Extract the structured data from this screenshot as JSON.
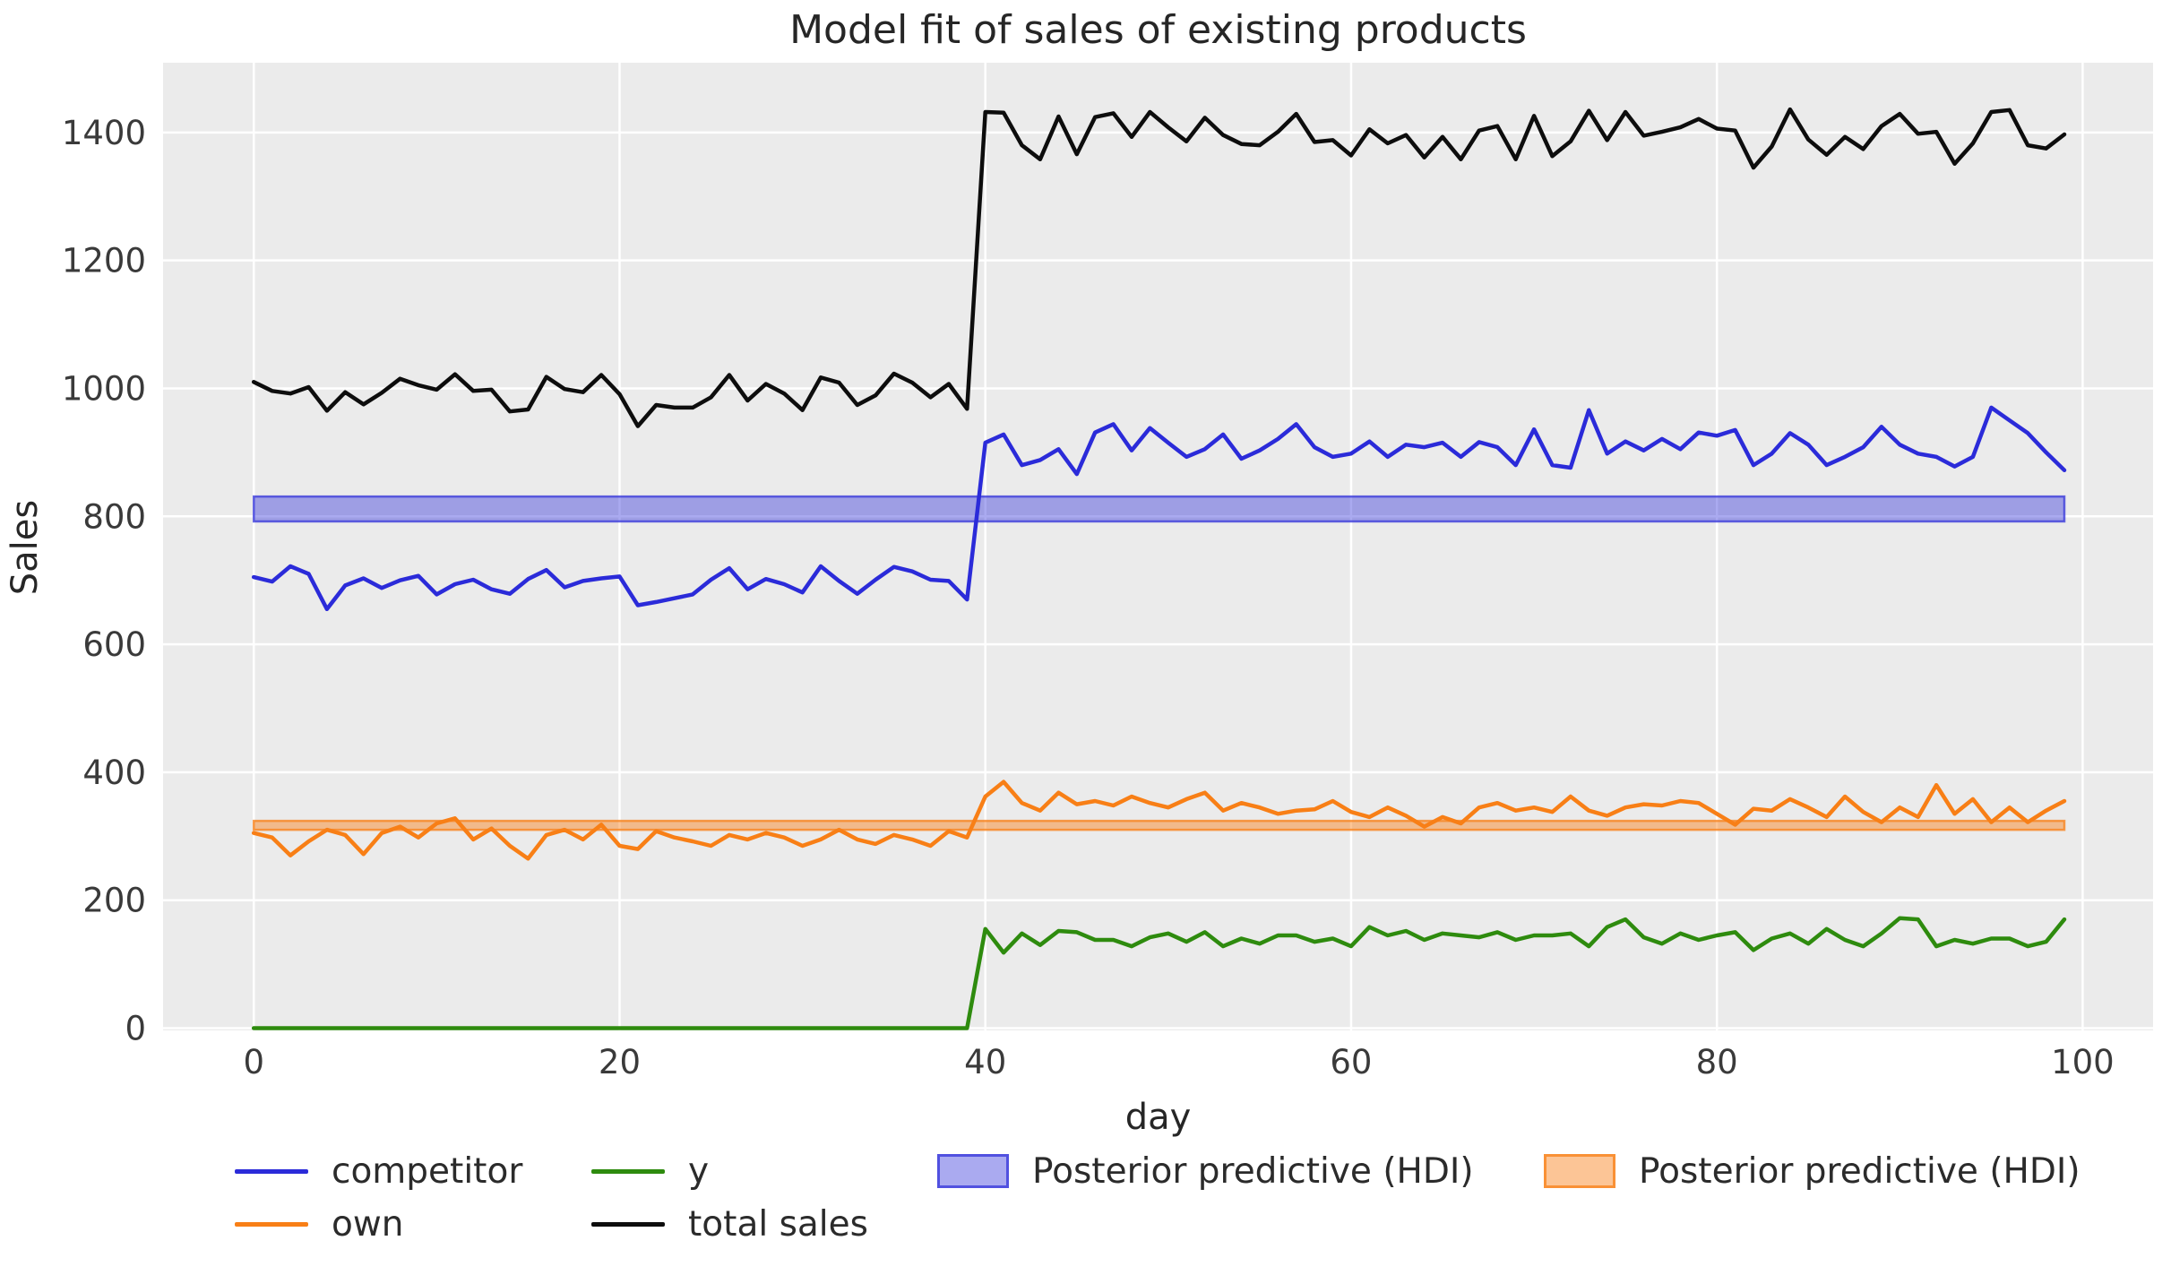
{
  "title": "Model fit of sales of existing products",
  "x_axis": {
    "label": "day",
    "ticks": [
      0,
      20,
      40,
      60,
      80,
      100
    ]
  },
  "y_axis": {
    "label": "Sales",
    "ticks": [
      0,
      200,
      400,
      600,
      800,
      1000,
      1200,
      1400
    ]
  },
  "colors": {
    "figure_bg": "#ffffff",
    "plot_bg": "#ebebeb",
    "grid": "#ffffff",
    "competitor": "#2b2bd9",
    "own": "#f87f16",
    "y_series": "#2e8b0e",
    "total_sales": "#0d0d0d",
    "hdi_blue_fill": "rgba(43,43,217,0.40)",
    "hdi_blue_edge": "rgba(43,43,217,0.70)",
    "hdi_orange_fill": "rgba(248,127,22,0.45)",
    "hdi_orange_edge": "rgba(248,127,22,0.75)"
  },
  "legend": {
    "items": [
      {
        "label": "competitor",
        "type": "line",
        "color": "#2b2bd9"
      },
      {
        "label": "own",
        "type": "line",
        "color": "#f87f16"
      },
      {
        "label": "y",
        "type": "line",
        "color": "#2e8b0e"
      },
      {
        "label": "total sales",
        "type": "line",
        "color": "#0d0d0d"
      },
      {
        "label": "Posterior predictive (HDI)",
        "type": "patch",
        "fill": "rgba(43,43,217,0.40)",
        "edge": "rgba(43,43,217,0.70)"
      },
      {
        "label": "Posterior predictive (HDI)",
        "type": "patch",
        "fill": "rgba(248,127,22,0.45)",
        "edge": "rgba(248,127,22,0.75)"
      }
    ]
  },
  "chart_data": {
    "type": "line",
    "title": "Model fit of sales of existing products",
    "xlabel": "day",
    "ylabel": "Sales",
    "xlim": [
      -4.96,
      103.85
    ],
    "ylim": [
      -3.5,
      1509
    ],
    "grid": true,
    "legend_position": "below",
    "x": [
      0,
      1,
      2,
      3,
      4,
      5,
      6,
      7,
      8,
      9,
      10,
      11,
      12,
      13,
      14,
      15,
      16,
      17,
      18,
      19,
      20,
      21,
      22,
      23,
      24,
      25,
      26,
      27,
      28,
      29,
      30,
      31,
      32,
      33,
      34,
      35,
      36,
      37,
      38,
      39,
      40,
      41,
      42,
      43,
      44,
      45,
      46,
      47,
      48,
      49,
      50,
      51,
      52,
      53,
      54,
      55,
      56,
      57,
      58,
      59,
      60,
      61,
      62,
      63,
      64,
      65,
      66,
      67,
      68,
      69,
      70,
      71,
      72,
      73,
      74,
      75,
      76,
      77,
      78,
      79,
      80,
      81,
      82,
      83,
      84,
      85,
      86,
      87,
      88,
      89,
      90,
      91,
      92,
      93,
      94,
      95,
      96,
      97,
      98,
      99
    ],
    "series": [
      {
        "name": "competitor",
        "color": "#2b2bd9",
        "values": [
          705,
          698,
          722,
          710,
          655,
          692,
          703,
          688,
          700,
          707,
          678,
          694,
          701,
          686,
          679,
          702,
          716,
          689,
          699,
          703,
          706,
          661,
          666,
          672,
          678,
          701,
          719,
          686,
          702,
          694,
          681,
          722,
          699,
          679,
          701,
          721,
          714,
          701,
          699,
          670,
          915,
          928,
          880,
          888,
          905,
          866,
          931,
          944,
          903,
          938,
          915,
          893,
          905,
          928,
          890,
          903,
          921,
          944,
          908,
          893,
          898,
          917,
          893,
          912,
          908,
          915,
          893,
          916,
          908,
          880,
          936,
          880,
          876,
          966,
          898,
          917,
          903,
          921,
          905,
          931,
          926,
          935,
          880,
          898,
          930,
          912,
          880,
          893,
          908,
          940,
          912,
          898,
          893,
          878,
          893,
          970,
          950,
          930,
          900,
          872
        ]
      },
      {
        "name": "own",
        "color": "#f87f16",
        "values": [
          305,
          298,
          270,
          292,
          310,
          302,
          272,
          305,
          315,
          298,
          320,
          328,
          295,
          312,
          285,
          265,
          302,
          310,
          295,
          318,
          285,
          280,
          308,
          298,
          292,
          285,
          302,
          295,
          305,
          298,
          285,
          295,
          310,
          295,
          288,
          302,
          295,
          285,
          308,
          298,
          362,
          385,
          352,
          340,
          368,
          350,
          355,
          348,
          362,
          352,
          345,
          358,
          368,
          340,
          352,
          345,
          335,
          340,
          342,
          355,
          338,
          330,
          345,
          332,
          315,
          330,
          320,
          345,
          352,
          340,
          345,
          338,
          362,
          340,
          332,
          345,
          350,
          348,
          355,
          352,
          335,
          318,
          343,
          340,
          358,
          345,
          330,
          362,
          338,
          322,
          345,
          330,
          380,
          335,
          358,
          322,
          345,
          322,
          340,
          355
        ]
      },
      {
        "name": "y",
        "color": "#2e8b0e",
        "values": [
          0,
          0,
          0,
          0,
          0,
          0,
          0,
          0,
          0,
          0,
          0,
          0,
          0,
          0,
          0,
          0,
          0,
          0,
          0,
          0,
          0,
          0,
          0,
          0,
          0,
          0,
          0,
          0,
          0,
          0,
          0,
          0,
          0,
          0,
          0,
          0,
          0,
          0,
          0,
          0,
          155,
          118,
          148,
          130,
          152,
          150,
          138,
          138,
          128,
          142,
          148,
          135,
          150,
          128,
          140,
          132,
          145,
          145,
          135,
          140,
          128,
          158,
          145,
          152,
          138,
          148,
          145,
          142,
          150,
          138,
          145,
          145,
          148,
          128,
          158,
          170,
          142,
          132,
          148,
          138,
          145,
          150,
          122,
          140,
          148,
          132,
          155,
          138,
          128,
          148,
          172,
          170,
          128,
          138,
          132,
          140,
          140,
          128,
          135,
          170
        ]
      },
      {
        "name": "total sales",
        "color": "#0d0d0d",
        "values": [
          1010,
          996,
          992,
          1002,
          965,
          994,
          975,
          993,
          1015,
          1005,
          998,
          1022,
          996,
          998,
          964,
          967,
          1018,
          999,
          994,
          1021,
          991,
          941,
          974,
          970,
          970,
          986,
          1021,
          981,
          1007,
          992,
          966,
          1017,
          1009,
          974,
          989,
          1023,
          1009,
          986,
          1007,
          968,
          1432,
          1431,
          1380,
          1358,
          1425,
          1366,
          1424,
          1430,
          1393,
          1432,
          1408,
          1386,
          1423,
          1396,
          1382,
          1380,
          1401,
          1429,
          1385,
          1388,
          1364,
          1405,
          1383,
          1396,
          1361,
          1393,
          1358,
          1403,
          1410,
          1358,
          1426,
          1363,
          1386,
          1434,
          1388,
          1432,
          1395,
          1401,
          1408,
          1421,
          1406,
          1403,
          1345,
          1378,
          1436,
          1389,
          1365,
          1393,
          1374,
          1410,
          1429,
          1398,
          1401,
          1351,
          1383,
          1432,
          1435,
          1380,
          1375,
          1397
        ]
      }
    ],
    "hdi_bands": [
      {
        "name": "Posterior predictive (HDI) competitor",
        "x_start": 0,
        "x_end": 99,
        "lower": 792,
        "upper": 831,
        "fill": "rgba(43,43,217,0.40)",
        "edge": "rgba(43,43,217,0.70)"
      },
      {
        "name": "Posterior predictive (HDI) own",
        "x_start": 0,
        "x_end": 99,
        "lower": 310,
        "upper": 324,
        "fill": "rgba(248,127,22,0.45)",
        "edge": "rgba(248,127,22,0.75)"
      }
    ]
  }
}
